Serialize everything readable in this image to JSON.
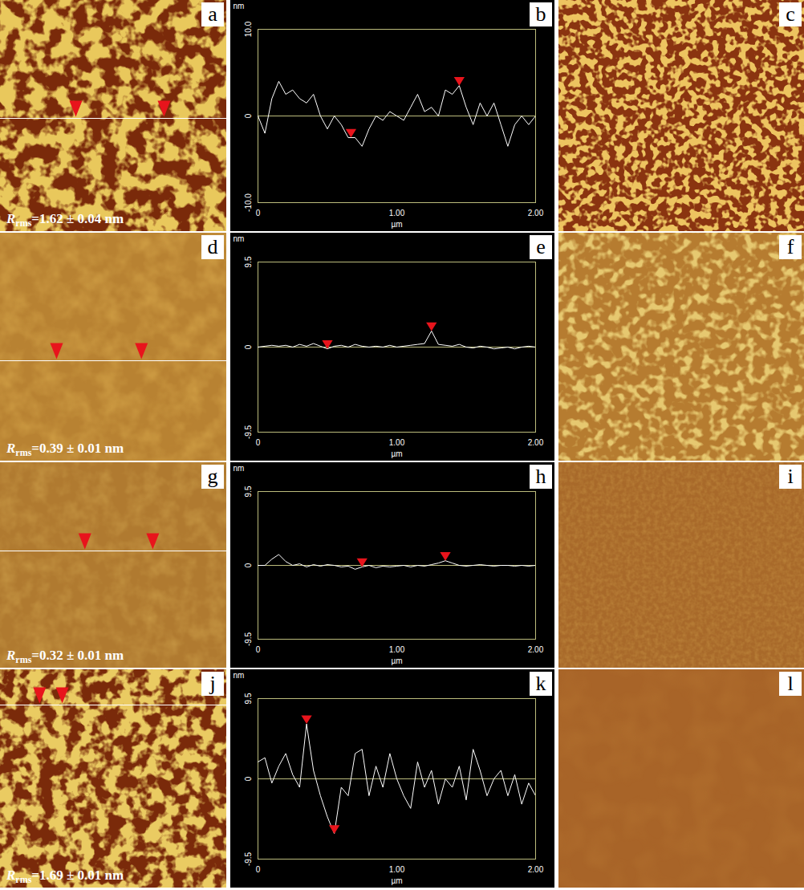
{
  "chart_data": [
    {
      "type": "line",
      "title": "b",
      "x_label": "µm",
      "y_label": "nm",
      "color": "#ffffff",
      "x": [
        0,
        0.05,
        0.1,
        0.15,
        0.2,
        0.25,
        0.3,
        0.35,
        0.4,
        0.45,
        0.5,
        0.55,
        0.6,
        0.65,
        0.7,
        0.75,
        0.8,
        0.85,
        0.9,
        0.95,
        1.0,
        1.05,
        1.1,
        1.15,
        1.2,
        1.25,
        1.3,
        1.35,
        1.4,
        1.45,
        1.5,
        1.55,
        1.6,
        1.65,
        1.7,
        1.75,
        1.8,
        1.85,
        1.9,
        1.95,
        2.0
      ],
      "values": [
        0,
        -2,
        2,
        4,
        2.5,
        3,
        2,
        1.5,
        2.5,
        0,
        -1.5,
        0,
        -1,
        -2.5,
        -2.5,
        -3.5,
        -1.5,
        0,
        -0.5,
        0.5,
        0,
        -0.5,
        1,
        2.5,
        0.5,
        1,
        0,
        3,
        2.5,
        3.5,
        1,
        -1,
        1.5,
        0,
        1.5,
        -1,
        -3.5,
        -1,
        0,
        -1,
        0
      ],
      "profile_marks": [
        {
          "x": 0.67,
          "y": -2.5
        },
        {
          "x": 1.45,
          "y": 3.5
        }
      ],
      "xlim": [
        0,
        2
      ],
      "xticks": [
        0,
        {
          "value": 1,
          "label": "1.00"
        },
        {
          "value": 2,
          "label": "2.00"
        }
      ],
      "ylim": [
        -10,
        10
      ],
      "yticks": [
        {
          "value": -10,
          "label": "-10.0"
        },
        0,
        {
          "value": 10,
          "label": "10.0"
        }
      ]
    },
    {
      "type": "line",
      "title": "e",
      "x_label": "µm",
      "y_label": "nm",
      "color": "#ffffff",
      "x": [
        0,
        0.05,
        0.1,
        0.15,
        0.2,
        0.25,
        0.3,
        0.35,
        0.4,
        0.45,
        0.5,
        0.55,
        0.6,
        0.65,
        0.7,
        0.75,
        0.8,
        0.85,
        0.9,
        0.95,
        1.0,
        1.05,
        1.1,
        1.15,
        1.2,
        1.25,
        1.3,
        1.35,
        1.4,
        1.45,
        1.5,
        1.55,
        1.6,
        1.65,
        1.7,
        1.75,
        1.8,
        1.85,
        1.9,
        1.95,
        2.0
      ],
      "values": [
        0,
        0.1,
        0.2,
        0.1,
        0.2,
        0,
        0.3,
        0.1,
        0.4,
        0.1,
        -0.2,
        0.1,
        0.2,
        0,
        0.3,
        0.1,
        0,
        0.1,
        0,
        0.2,
        0,
        0.1,
        0.2,
        0.3,
        0.4,
        1.8,
        0.3,
        0.2,
        0.1,
        0.3,
        0,
        -0.1,
        0.1,
        0,
        -0.2,
        -0.1,
        0,
        -0.2,
        0,
        0.1,
        0
      ],
      "profile_marks": [
        {
          "x": 0.5,
          "y": -0.2
        },
        {
          "x": 1.25,
          "y": 1.8
        }
      ],
      "xlim": [
        0,
        2
      ],
      "xticks": [
        0,
        {
          "value": 1,
          "label": "1.00"
        },
        {
          "value": 2,
          "label": "2.00"
        }
      ],
      "ylim": [
        -9.5,
        9.5
      ],
      "yticks": [
        -9.5,
        0,
        9.5
      ]
    },
    {
      "type": "line",
      "title": "h",
      "x_label": "µm",
      "y_label": "nm",
      "color": "#ffffff",
      "x": [
        0,
        0.05,
        0.1,
        0.15,
        0.2,
        0.25,
        0.3,
        0.35,
        0.4,
        0.45,
        0.5,
        0.55,
        0.6,
        0.65,
        0.7,
        0.75,
        0.8,
        0.85,
        0.9,
        0.95,
        1.0,
        1.05,
        1.1,
        1.15,
        1.2,
        1.25,
        1.3,
        1.35,
        1.4,
        1.45,
        1.5,
        1.55,
        1.6,
        1.65,
        1.7,
        1.75,
        1.8,
        1.85,
        1.9,
        1.95,
        2.0
      ],
      "values": [
        0,
        0,
        0.8,
        1.4,
        0.5,
        0,
        0.2,
        -0.2,
        0.1,
        -0.1,
        0.1,
        0,
        -0.2,
        -0.1,
        -0.5,
        -0.2,
        0,
        -0.3,
        -0.1,
        -0.2,
        -0.1,
        0,
        -0.2,
        0,
        -0.1,
        0.1,
        0.3,
        0.6,
        0.3,
        0,
        -0.1,
        0,
        0.1,
        0,
        -0.1,
        0,
        0,
        -0.1,
        0,
        -0.1,
        0
      ],
      "profile_marks": [
        {
          "x": 0.75,
          "y": -0.2
        },
        {
          "x": 1.35,
          "y": 0.6
        }
      ],
      "xlim": [
        0,
        2
      ],
      "xticks": [
        0,
        {
          "value": 1,
          "label": "1.00"
        },
        {
          "value": 2,
          "label": "2.00"
        }
      ],
      "ylim": [
        -9.5,
        9.5
      ],
      "yticks": [
        -9.5,
        0,
        9.5
      ]
    },
    {
      "type": "line",
      "title": "k",
      "x_label": "µm",
      "y_label": "nm",
      "color": "#ffffff",
      "x": [
        0,
        0.05,
        0.1,
        0.15,
        0.2,
        0.25,
        0.3,
        0.35,
        0.4,
        0.45,
        0.5,
        0.55,
        0.6,
        0.65,
        0.7,
        0.75,
        0.8,
        0.85,
        0.9,
        0.95,
        1.0,
        1.05,
        1.1,
        1.15,
        1.2,
        1.25,
        1.3,
        1.35,
        1.4,
        1.45,
        1.5,
        1.55,
        1.6,
        1.65,
        1.7,
        1.75,
        1.8,
        1.85,
        1.9,
        1.95,
        2.0
      ],
      "values": [
        2,
        2.5,
        -0.5,
        1.5,
        3,
        0.5,
        -1,
        6.5,
        1,
        -2,
        -4.5,
        -6.5,
        -1,
        -2,
        3,
        3.5,
        -2,
        1.5,
        -1,
        3,
        0,
        -2,
        -3.5,
        2,
        -1,
        1,
        -3,
        0,
        -1,
        1.5,
        -2.5,
        3.5,
        1,
        -2,
        0,
        1,
        -2,
        0.5,
        -3,
        -0.5,
        -2
      ],
      "profile_marks": [
        {
          "x": 0.35,
          "y": 6.5
        },
        {
          "x": 0.55,
          "y": -6.5
        }
      ],
      "xlim": [
        0,
        2
      ],
      "xticks": [
        0,
        {
          "value": 1,
          "label": "1.00"
        },
        {
          "value": 2,
          "label": "2.00"
        }
      ],
      "ylim": [
        -9.5,
        9.5
      ],
      "yticks": [
        -9.5,
        0,
        9.5
      ]
    }
  ],
  "images": [
    {
      "label": "a",
      "kind": "height",
      "profile": "b",
      "rms": {
        "symbol": "R",
        "subscript": "rms",
        "text": "=1.62 ± 0.04 nm"
      }
    },
    {
      "label": "c",
      "kind": "phase"
    },
    {
      "label": "d",
      "kind": "height",
      "profile": "e",
      "rms": {
        "symbol": "R",
        "subscript": "rms",
        "text": "=0.39 ± 0.01 nm"
      }
    },
    {
      "label": "f",
      "kind": "phase"
    },
    {
      "label": "g",
      "kind": "height",
      "profile": "h",
      "rms": {
        "symbol": "R",
        "subscript": "rms",
        "text": "=0.32 ± 0.01 nm"
      }
    },
    {
      "label": "i",
      "kind": "phase"
    },
    {
      "label": "j",
      "kind": "height",
      "profile": "k",
      "rms": {
        "symbol": "R",
        "subscript": "rms",
        "text": "=1.69 ± 0.01 nm"
      }
    },
    {
      "label": "l",
      "kind": "phase"
    }
  ]
}
